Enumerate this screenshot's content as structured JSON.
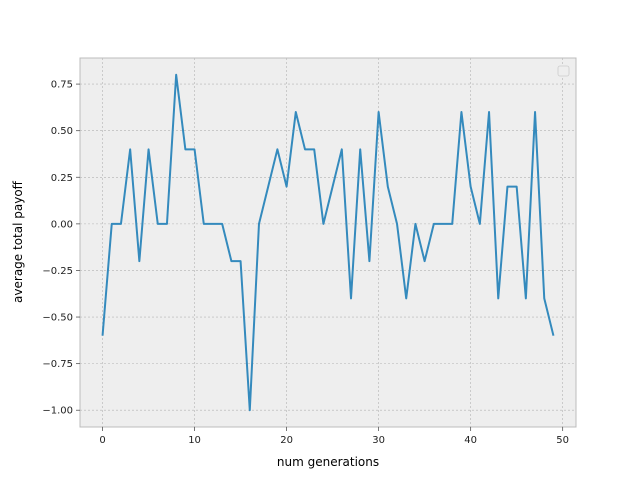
{
  "chart_data": {
    "type": "line",
    "title": "",
    "xlabel": "num generations",
    "ylabel": "average total payoff",
    "xlim": [
      -2.45,
      51.45
    ],
    "ylim": [
      -1.09,
      0.89
    ],
    "xticks": [
      0,
      10,
      20,
      30,
      40,
      50
    ],
    "xtick_labels": [
      "0",
      "10",
      "20",
      "30",
      "40",
      "50"
    ],
    "yticks": [
      -1.0,
      -0.75,
      -0.5,
      -0.25,
      0.0,
      0.25,
      0.5,
      0.75
    ],
    "ytick_labels": [
      "−1.00",
      "−0.75",
      "−0.50",
      "−0.25",
      "0.00",
      "0.25",
      "0.50",
      "0.75"
    ],
    "grid": true,
    "legend": "top-right (empty)",
    "colors": {
      "line": "#348ABD",
      "plot_bg": "#EEEEEE",
      "grid": "#B2B2B2",
      "spine": "#BCBCBC"
    },
    "series": [
      {
        "x": [
          0,
          1,
          2,
          3,
          4,
          5,
          6,
          7,
          8,
          9,
          10,
          11,
          12,
          13,
          14,
          15,
          16,
          17,
          18,
          19,
          20,
          21,
          22,
          23,
          24,
          25,
          26,
          27,
          28,
          29,
          30,
          31,
          32,
          33,
          34,
          35,
          36,
          37,
          38,
          39,
          40,
          41,
          42,
          43,
          44,
          45,
          46,
          47,
          48,
          49
        ],
        "values": [
          -0.6,
          0.0,
          0.0,
          0.4,
          -0.2,
          0.4,
          0.0,
          0.0,
          0.8,
          0.4,
          0.4,
          0.0,
          0.0,
          0.0,
          -0.2,
          -0.2,
          -1.0,
          0.0,
          0.2,
          0.4,
          0.2,
          0.6,
          0.4,
          0.4,
          0.0,
          0.2,
          0.4,
          -0.4,
          0.4,
          -0.2,
          0.6,
          0.2,
          0.0,
          -0.4,
          0.0,
          -0.2,
          0.0,
          0.0,
          0.0,
          0.6,
          0.2,
          0.0,
          0.6,
          -0.4,
          0.2,
          0.2,
          -0.4,
          0.6,
          -0.4,
          -0.6
        ]
      }
    ]
  }
}
